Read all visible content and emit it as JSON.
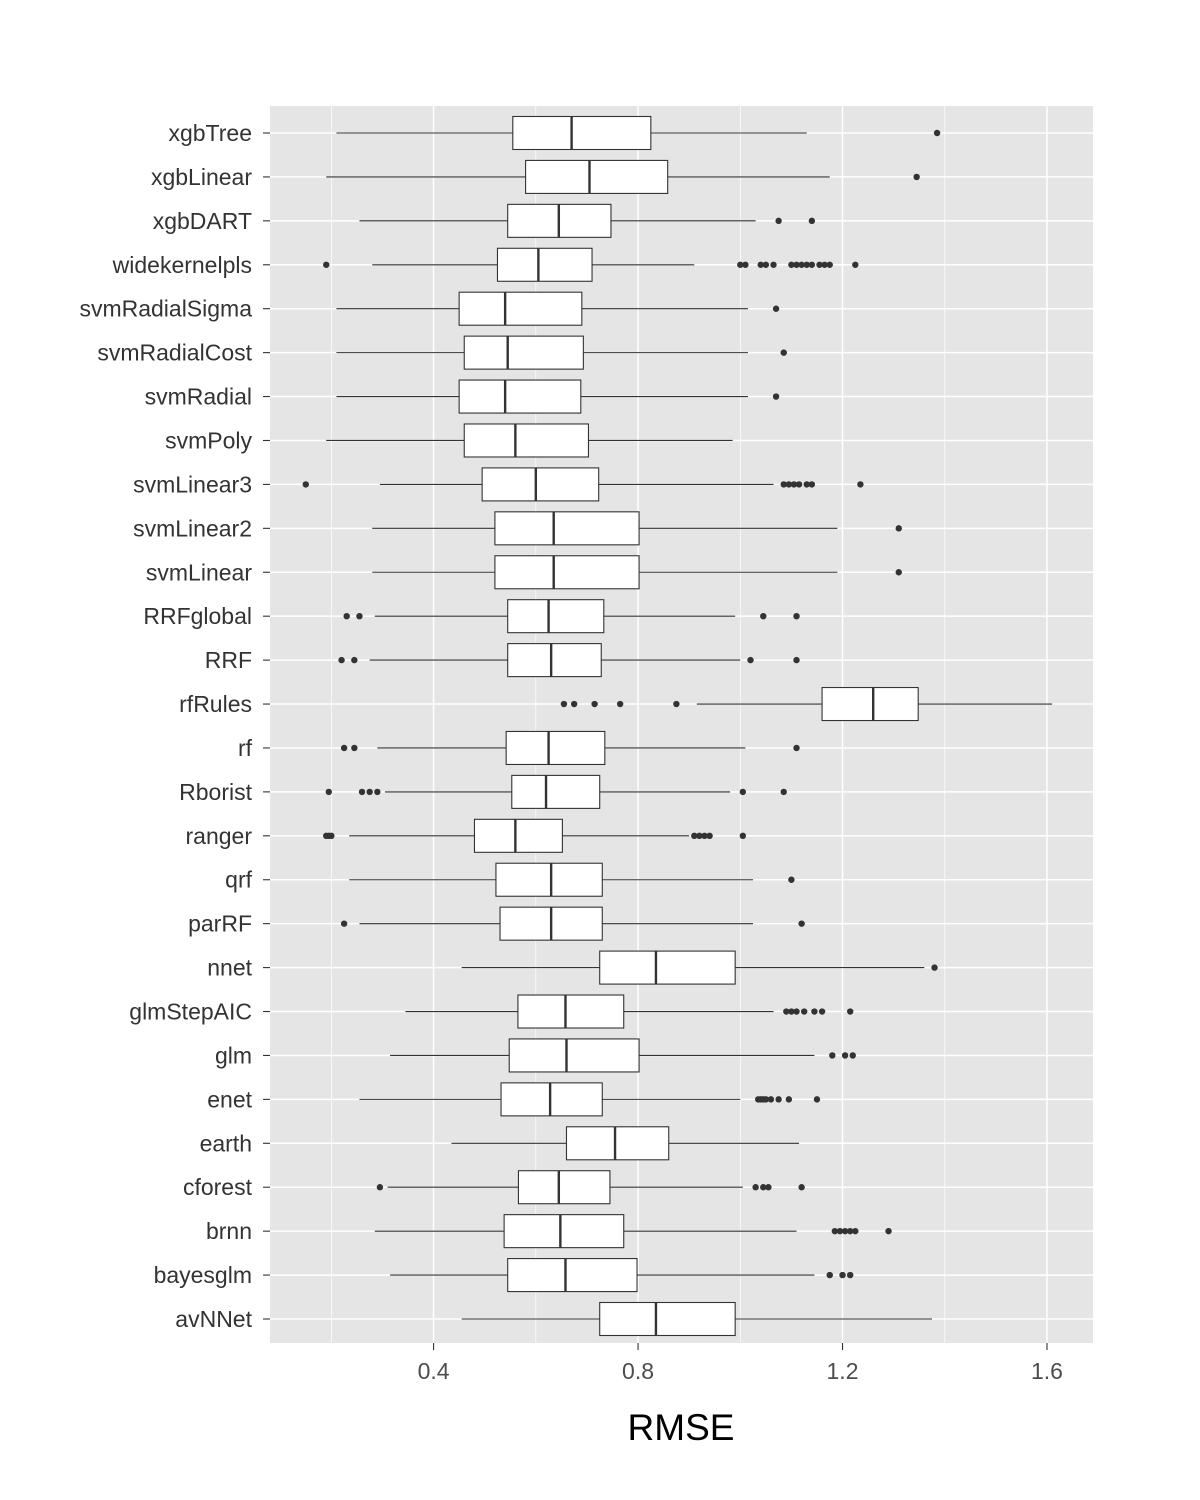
{
  "chart_data": {
    "type": "boxplot",
    "orientation": "horizontal",
    "xlabel": "RMSE",
    "ylabel": "",
    "xlim": [
      0.08,
      1.69
    ],
    "xticks": [
      0.4,
      0.8,
      1.2,
      1.6
    ],
    "xtick_labels": [
      "0.4",
      "0.8",
      "1.2",
      "1.6"
    ],
    "grid": true,
    "legend": "none",
    "colors": {
      "panel_background": "#e5e5e5",
      "grid": "#ffffff",
      "box_fill": "#ffffff",
      "box_stroke": "#333333",
      "outlier": "#333333"
    },
    "categories": [
      "xgbTree",
      "xgbLinear",
      "xgbDART",
      "widekernelpls",
      "svmRadialSigma",
      "svmRadialCost",
      "svmRadial",
      "svmPoly",
      "svmLinear3",
      "svmLinear2",
      "svmLinear",
      "RRFglobal",
      "RRF",
      "rfRules",
      "rf",
      "Rborist",
      "ranger",
      "qrf",
      "parRF",
      "nnet",
      "glmStepAIC",
      "glm",
      "enet",
      "earth",
      "cforest",
      "brnn",
      "bayesglm",
      "avNNet"
    ],
    "boxes": [
      {
        "name": "xgbTree",
        "whisker_low": 0.21,
        "q1": 0.555,
        "median": 0.67,
        "q3": 0.825,
        "whisker_high": 1.13,
        "outliers": [
          1.385
        ]
      },
      {
        "name": "xgbLinear",
        "whisker_low": 0.19,
        "q1": 0.58,
        "median": 0.705,
        "q3": 0.858,
        "whisker_high": 1.175,
        "outliers": [
          1.345
        ]
      },
      {
        "name": "xgbDART",
        "whisker_low": 0.255,
        "q1": 0.545,
        "median": 0.645,
        "q3": 0.747,
        "whisker_high": 1.03,
        "outliers": [
          1.075,
          1.14
        ]
      },
      {
        "name": "widekernelpls",
        "whisker_low": 0.28,
        "q1": 0.525,
        "median": 0.605,
        "q3": 0.71,
        "whisker_high": 0.91,
        "outliers": [
          0.19,
          1.0,
          1.01,
          1.04,
          1.05,
          1.065,
          1.1,
          1.11,
          1.12,
          1.13,
          1.14,
          1.155,
          1.165,
          1.175,
          1.225
        ]
      },
      {
        "name": "svmRadialSigma",
        "whisker_low": 0.21,
        "q1": 0.45,
        "median": 0.54,
        "q3": 0.69,
        "whisker_high": 1.015,
        "outliers": [
          1.07
        ]
      },
      {
        "name": "svmRadialCost",
        "whisker_low": 0.21,
        "q1": 0.46,
        "median": 0.545,
        "q3": 0.693,
        "whisker_high": 1.015,
        "outliers": [
          1.085
        ]
      },
      {
        "name": "svmRadial",
        "whisker_low": 0.21,
        "q1": 0.45,
        "median": 0.54,
        "q3": 0.688,
        "whisker_high": 1.015,
        "outliers": [
          1.07
        ]
      },
      {
        "name": "svmPoly",
        "whisker_low": 0.19,
        "q1": 0.46,
        "median": 0.56,
        "q3": 0.703,
        "whisker_high": 0.985,
        "outliers": []
      },
      {
        "name": "svmLinear3",
        "whisker_low": 0.295,
        "q1": 0.495,
        "median": 0.6,
        "q3": 0.723,
        "whisker_high": 1.065,
        "outliers": [
          0.15,
          1.085,
          1.095,
          1.105,
          1.115,
          1.13,
          1.14,
          1.235
        ]
      },
      {
        "name": "svmLinear2",
        "whisker_low": 0.28,
        "q1": 0.52,
        "median": 0.635,
        "q3": 0.802,
        "whisker_high": 1.19,
        "outliers": [
          1.31
        ]
      },
      {
        "name": "svmLinear",
        "whisker_low": 0.28,
        "q1": 0.52,
        "median": 0.635,
        "q3": 0.802,
        "whisker_high": 1.19,
        "outliers": [
          1.31
        ]
      },
      {
        "name": "RRFglobal",
        "whisker_low": 0.285,
        "q1": 0.545,
        "median": 0.625,
        "q3": 0.733,
        "whisker_high": 0.99,
        "outliers": [
          0.23,
          0.255,
          1.045,
          1.11
        ]
      },
      {
        "name": "RRF",
        "whisker_low": 0.275,
        "q1": 0.545,
        "median": 0.63,
        "q3": 0.728,
        "whisker_high": 1.0,
        "outliers": [
          0.22,
          0.245,
          1.02,
          1.11
        ]
      },
      {
        "name": "rfRules",
        "whisker_low": 0.915,
        "q1": 1.16,
        "median": 1.26,
        "q3": 1.348,
        "whisker_high": 1.61,
        "outliers": [
          0.655,
          0.675,
          0.715,
          0.765,
          0.875
        ]
      },
      {
        "name": "rf",
        "whisker_low": 0.29,
        "q1": 0.542,
        "median": 0.625,
        "q3": 0.735,
        "whisker_high": 1.01,
        "outliers": [
          0.225,
          0.245,
          1.11
        ]
      },
      {
        "name": "Rborist",
        "whisker_low": 0.305,
        "q1": 0.553,
        "median": 0.62,
        "q3": 0.725,
        "whisker_high": 0.98,
        "outliers": [
          0.195,
          0.26,
          0.275,
          0.29,
          1.005,
          1.085
        ]
      },
      {
        "name": "ranger",
        "whisker_low": 0.235,
        "q1": 0.48,
        "median": 0.56,
        "q3": 0.652,
        "whisker_high": 0.9,
        "outliers": [
          0.19,
          0.195,
          0.2,
          0.91,
          0.92,
          0.93,
          0.94,
          1.005
        ]
      },
      {
        "name": "qrf",
        "whisker_low": 0.235,
        "q1": 0.522,
        "median": 0.63,
        "q3": 0.73,
        "whisker_high": 1.025,
        "outliers": [
          1.1
        ]
      },
      {
        "name": "parRF",
        "whisker_low": 0.255,
        "q1": 0.53,
        "median": 0.63,
        "q3": 0.73,
        "whisker_high": 1.025,
        "outliers": [
          0.225,
          1.12
        ]
      },
      {
        "name": "nnet",
        "whisker_low": 0.455,
        "q1": 0.725,
        "median": 0.835,
        "q3": 0.99,
        "whisker_high": 1.36,
        "outliers": [
          1.38
        ]
      },
      {
        "name": "glmStepAIC",
        "whisker_low": 0.345,
        "q1": 0.565,
        "median": 0.658,
        "q3": 0.772,
        "whisker_high": 1.065,
        "outliers": [
          1.09,
          1.1,
          1.11,
          1.125,
          1.145,
          1.16,
          1.215
        ]
      },
      {
        "name": "glm",
        "whisker_low": 0.315,
        "q1": 0.548,
        "median": 0.66,
        "q3": 0.802,
        "whisker_high": 1.145,
        "outliers": [
          1.18,
          1.205,
          1.22
        ]
      },
      {
        "name": "enet",
        "whisker_low": 0.255,
        "q1": 0.532,
        "median": 0.628,
        "q3": 0.73,
        "whisker_high": 1.0,
        "outliers": [
          1.035,
          1.04,
          1.045,
          1.05,
          1.06,
          1.075,
          1.095,
          1.15
        ]
      },
      {
        "name": "earth",
        "whisker_low": 0.435,
        "q1": 0.66,
        "median": 0.755,
        "q3": 0.86,
        "whisker_high": 1.115,
        "outliers": []
      },
      {
        "name": "cforest",
        "whisker_low": 0.31,
        "q1": 0.566,
        "median": 0.645,
        "q3": 0.745,
        "whisker_high": 1.005,
        "outliers": [
          0.295,
          1.03,
          1.045,
          1.055,
          1.12
        ]
      },
      {
        "name": "brnn",
        "whisker_low": 0.285,
        "q1": 0.538,
        "median": 0.648,
        "q3": 0.772,
        "whisker_high": 1.11,
        "outliers": [
          1.185,
          1.195,
          1.205,
          1.215,
          1.225,
          1.29
        ]
      },
      {
        "name": "bayesglm",
        "whisker_low": 0.315,
        "q1": 0.545,
        "median": 0.658,
        "q3": 0.798,
        "whisker_high": 1.145,
        "outliers": [
          1.175,
          1.2,
          1.215
        ]
      },
      {
        "name": "avNNet",
        "whisker_low": 0.455,
        "q1": 0.725,
        "median": 0.835,
        "q3": 0.99,
        "whisker_high": 1.375,
        "outliers": []
      }
    ]
  }
}
